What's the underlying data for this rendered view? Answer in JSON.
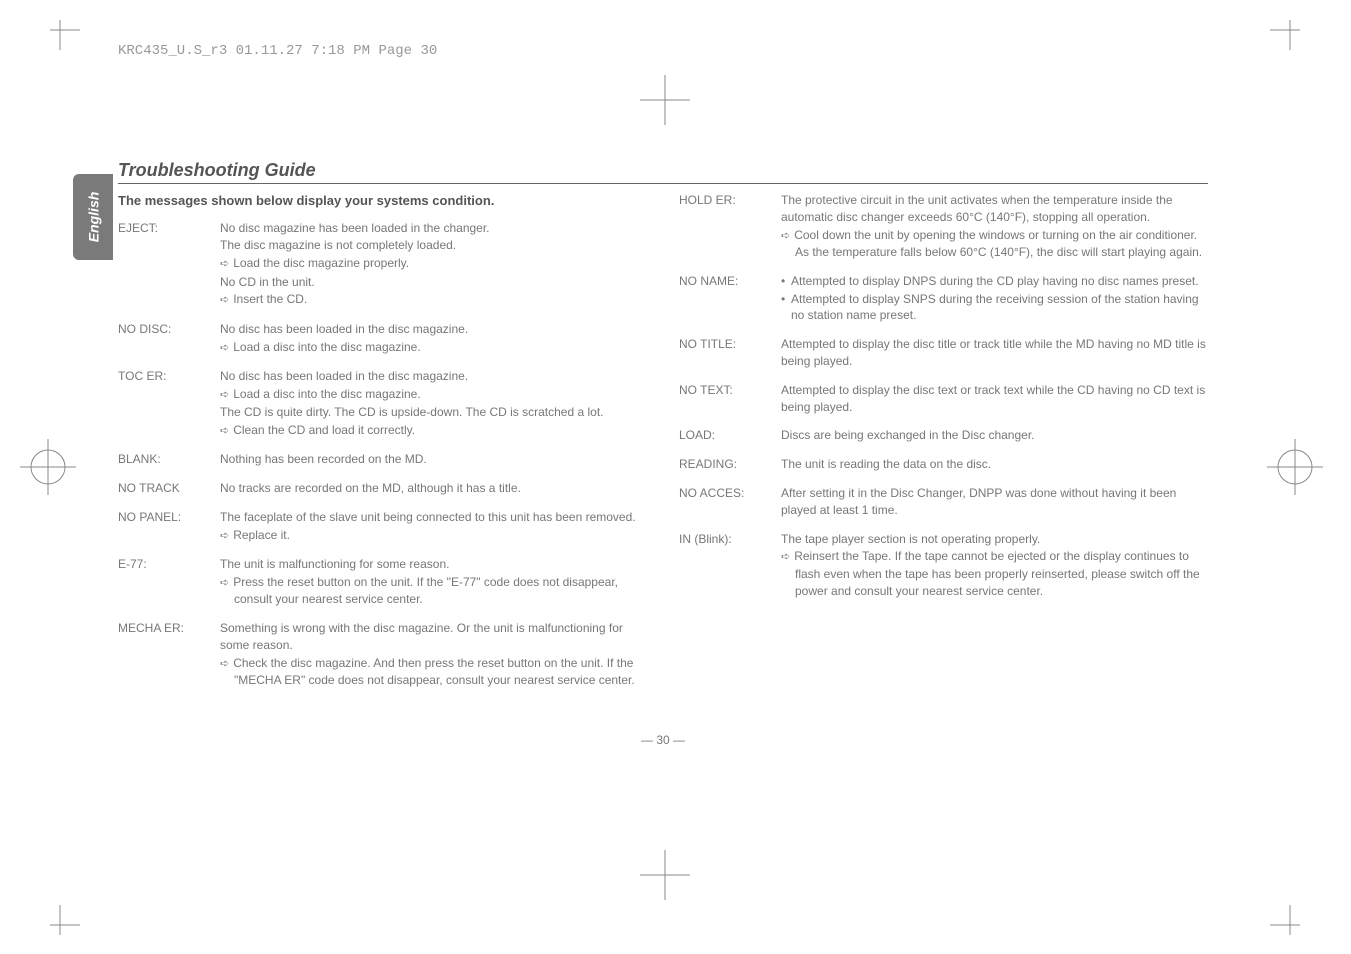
{
  "header_line": "KRC435_U.S_r3  01.11.27  7:18 PM  Page 30",
  "side_tab": "English",
  "title": "Troubleshooting Guide",
  "sub_heading": "The messages shown below display your systems condition.",
  "page_number": "— 30 —",
  "left": [
    {
      "label": "EJECT:",
      "lines": [
        {
          "t": "No disc magazine has been loaded in the changer."
        },
        {
          "t": "The disc magazine is not completely loaded."
        },
        {
          "t": "Load the disc magazine properly.",
          "arrow": true
        },
        {
          "t": "No CD in the unit."
        },
        {
          "t": "Insert the CD.",
          "arrow": true
        }
      ]
    },
    {
      "label": "NO DISC:",
      "lines": [
        {
          "t": "No disc has been loaded in the disc magazine."
        },
        {
          "t": "Load a disc into the disc magazine.",
          "arrow": true
        }
      ]
    },
    {
      "label": "TOC ER:",
      "lines": [
        {
          "t": "No disc has been loaded in the disc magazine."
        },
        {
          "t": "Load a disc into the disc magazine.",
          "arrow": true
        },
        {
          "t": "The CD is quite dirty. The CD is upside-down. The CD is scratched a lot."
        },
        {
          "t": "Clean the CD and load it correctly.",
          "arrow": true
        }
      ]
    },
    {
      "label": "BLANK:",
      "lines": [
        {
          "t": "Nothing has been recorded on the MD."
        }
      ]
    },
    {
      "label": "NO TRACK",
      "lines": [
        {
          "t": "No tracks are recorded on the MD, although it has a title."
        }
      ]
    },
    {
      "label": "NO PANEL:",
      "lines": [
        {
          "t": "The faceplate of the slave unit being connected to this unit has been removed."
        },
        {
          "t": "Replace it.",
          "arrow": true
        }
      ]
    },
    {
      "label": "E-77:",
      "lines": [
        {
          "t": "The unit is malfunctioning for some reason."
        },
        {
          "t": "Press the reset button on the unit. If the \"E-77\" code does not disappear, consult your nearest service center.",
          "arrow": true
        }
      ]
    },
    {
      "label": "MECHA ER:",
      "lines": [
        {
          "t": "Something is wrong with the disc magazine. Or the unit is malfunctioning for some reason."
        },
        {
          "t": "Check the disc magazine. And then press the reset button on the unit. If the \"MECHA ER\" code does not disappear, consult your nearest service center.",
          "arrow": true
        }
      ]
    }
  ],
  "right": [
    {
      "label": "HOLD ER:",
      "lines": [
        {
          "t": "The protective circuit in the unit activates when the temperature inside the automatic disc changer exceeds 60°C (140°F), stopping all operation."
        },
        {
          "t": "Cool down the unit by opening the windows or turning on the air conditioner. As the temperature falls below 60°C (140°F), the disc will start playing again.",
          "arrow": true
        }
      ]
    },
    {
      "label": "NO NAME:",
      "lines": [
        {
          "t": "Attempted to display DNPS during the CD play having no disc names preset.",
          "bullet": true
        },
        {
          "t": "Attempted to display SNPS during the receiving session of the station having no station name preset.",
          "bullet": true
        }
      ]
    },
    {
      "label": "NO TITLE:",
      "lines": [
        {
          "t": "Attempted to display the disc title or track title while the MD having no MD title is being played."
        }
      ]
    },
    {
      "label": "NO TEXT:",
      "lines": [
        {
          "t": "Attempted to display the disc text or track text while the CD having no CD text is being played."
        }
      ]
    },
    {
      "label": "LOAD:",
      "lines": [
        {
          "t": "Discs are being exchanged in the Disc changer."
        }
      ]
    },
    {
      "label": "READING:",
      "lines": [
        {
          "t": "The unit is reading the data on the disc."
        }
      ]
    },
    {
      "label": "NO ACCES:",
      "lines": [
        {
          "t": "After setting it in the Disc Changer, DNPP was done without having it been played at least 1 time."
        }
      ]
    },
    {
      "label": "IN (Blink):",
      "lines": [
        {
          "t": "The tape player section is not operating properly."
        },
        {
          "t": "Reinsert the Tape. If the tape cannot be ejected or the display continues to flash even when the tape has been properly reinserted, please switch off the power and consult your nearest service center.",
          "arrow": true
        }
      ]
    }
  ]
}
